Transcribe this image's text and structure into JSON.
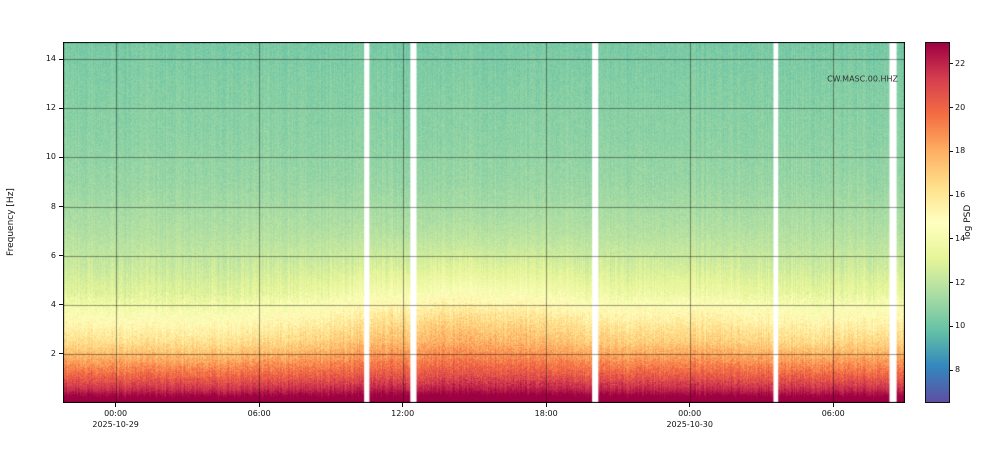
{
  "chart_data": {
    "type": "heatmap",
    "annotation": "CW.MASC.00.HHZ",
    "ylabel": "Frequency [Hz]",
    "ylim": [
      0,
      14.7
    ],
    "y_ticks": [
      2,
      4,
      6,
      8,
      10,
      12,
      14
    ],
    "time_span_hours": 35.2,
    "x_ticks": [
      {
        "label": "00:00",
        "hour": 2.2,
        "date": "2025-10-29"
      },
      {
        "label": "06:00",
        "hour": 8.2
      },
      {
        "label": "12:00",
        "hour": 14.2
      },
      {
        "label": "18:00",
        "hour": 20.2
      },
      {
        "label": "00:00",
        "hour": 26.2,
        "date": "2025-10-30"
      },
      {
        "label": "06:00",
        "hour": 32.2
      }
    ],
    "colorbar": {
      "label": "log PSD",
      "ticks": [
        8,
        10,
        12,
        14,
        16,
        18,
        20,
        22
      ],
      "vmin": 6.5,
      "vmax": 23
    },
    "colormap": "Spectral_r",
    "colormap_stops": [
      {
        "t": 0.0,
        "c": "#5e4fa2"
      },
      {
        "t": 0.1,
        "c": "#3288bd"
      },
      {
        "t": 0.2,
        "c": "#66c2a5"
      },
      {
        "t": 0.3,
        "c": "#abdda4"
      },
      {
        "t": 0.4,
        "c": "#e6f598"
      },
      {
        "t": 0.5,
        "c": "#ffffbf"
      },
      {
        "t": 0.6,
        "c": "#fee08b"
      },
      {
        "t": 0.7,
        "c": "#fdae61"
      },
      {
        "t": 0.8,
        "c": "#f46d43"
      },
      {
        "t": 0.9,
        "c": "#d53e4f"
      },
      {
        "t": 1.0,
        "c": "#9e0142"
      }
    ],
    "freq_profile_hz_logpsd": [
      [
        0,
        24.0
      ],
      [
        0.2,
        23.2
      ],
      [
        0.5,
        21.8
      ],
      [
        0.8,
        20.8
      ],
      [
        1.2,
        19.5
      ],
      [
        1.8,
        17.8
      ],
      [
        2.5,
        16.0
      ],
      [
        3.5,
        14.3
      ],
      [
        4.5,
        12.8
      ],
      [
        5.5,
        12.2
      ],
      [
        7,
        11.6
      ],
      [
        9,
        11.0
      ],
      [
        11,
        10.7
      ],
      [
        13,
        10.5
      ],
      [
        15,
        10.2
      ]
    ],
    "diurnal_modulation_hour_amp": [
      [
        0,
        0.15
      ],
      [
        2.2,
        0.1
      ],
      [
        6,
        0.05
      ],
      [
        10,
        0.35
      ],
      [
        13,
        0.75
      ],
      [
        16,
        1.0
      ],
      [
        19,
        0.9
      ],
      [
        22,
        0.55
      ],
      [
        24,
        0.45
      ],
      [
        26.2,
        0.55
      ],
      [
        28,
        0.5
      ],
      [
        31,
        0.25
      ],
      [
        33,
        0.3
      ],
      [
        35.2,
        0.4
      ]
    ],
    "day_bump": {
      "amplitude": 2.1,
      "center_hz": 3.2,
      "sigma_hz": 2.4
    },
    "gaps_hours": [
      [
        12.7,
        0.22
      ],
      [
        14.65,
        0.26
      ],
      [
        22.25,
        0.26
      ],
      [
        29.8,
        0.2
      ],
      [
        34.7,
        0.3
      ]
    ],
    "noise_amplitude": 0.9
  }
}
